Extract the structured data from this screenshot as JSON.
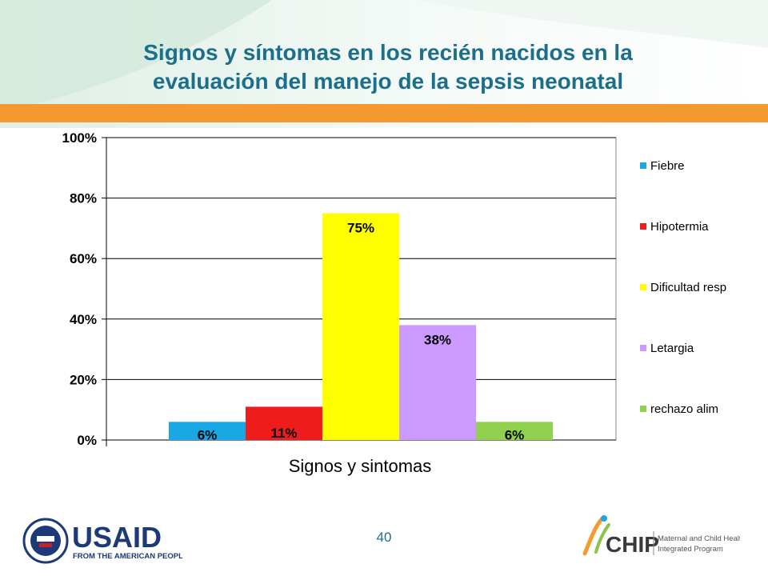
{
  "slide": {
    "title_line1": "Signos y síntomas en los recién nacidos en la",
    "title_line2": "evaluación del manejo de la sepsis neonatal",
    "page_number": "40"
  },
  "colors": {
    "title": "#1c6f8a",
    "band": "#f59a2f"
  },
  "logos": {
    "usaid_text": "USAID",
    "usaid_tagline": "FROM THE AMERICAN PEOPLE",
    "mchip_text": "CHIP",
    "mchip_tagline_1": "Maternal and Child Health",
    "mchip_tagline_2": "Integrated Program"
  },
  "chart_data": {
    "type": "bar",
    "categories": [
      "Signos y sintomas"
    ],
    "xlabel": "Signos y sintomas",
    "ylabel": "",
    "ylim": [
      0,
      100
    ],
    "yticks": [
      "0%",
      "20%",
      "40%",
      "60%",
      "80%",
      "100%"
    ],
    "grid": true,
    "legend_position": "right",
    "series": [
      {
        "name": "Fiebre",
        "values": [
          6
        ],
        "label": "6%",
        "color": "#1aa7e6"
      },
      {
        "name": "Hipotermia",
        "values": [
          11
        ],
        "label": "11%",
        "color": "#ee1c1c"
      },
      {
        "name": "Dificultad resp",
        "values": [
          75
        ],
        "label": "75%",
        "color": "#ffff00"
      },
      {
        "name": "Letargia",
        "values": [
          38
        ],
        "label": "38%",
        "color": "#cc99ff"
      },
      {
        "name": "rechazo alim",
        "values": [
          6
        ],
        "label": "6%",
        "color": "#92d050"
      }
    ]
  }
}
